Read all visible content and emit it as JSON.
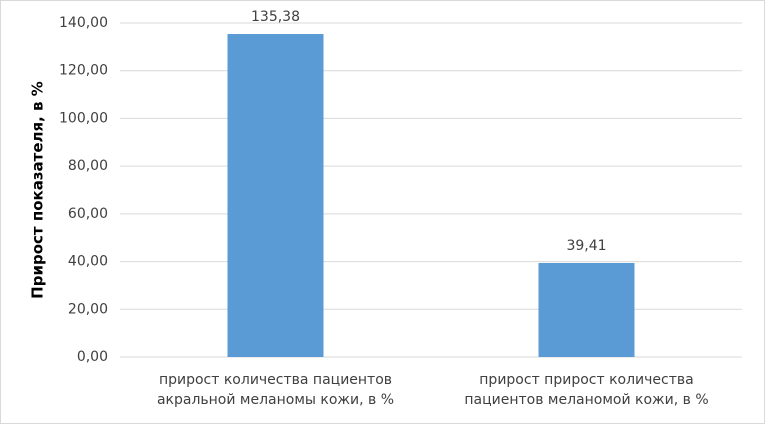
{
  "chart_data": {
    "type": "bar",
    "y_label": "Прирост показателя, в %",
    "categories": [
      [
        "прирост количества пациентов",
        "акральной меланомы кожи, в %"
      ],
      [
        "прирост прирост количества",
        "пациентов меланомой кожи, в %"
      ]
    ],
    "values": [
      135.38,
      39.41
    ],
    "value_labels": [
      "135,38",
      "39,41"
    ],
    "color": "#5b9bd5",
    "ylim": [
      0,
      140
    ],
    "yticks": [
      {
        "value": 0,
        "label": "0,00"
      },
      {
        "value": 20,
        "label": "20,00"
      },
      {
        "value": 40,
        "label": "40,00"
      },
      {
        "value": 60,
        "label": "60,00"
      },
      {
        "value": 80,
        "label": "80,00"
      },
      {
        "value": 100,
        "label": "100,00"
      },
      {
        "value": 120,
        "label": "120,00"
      },
      {
        "value": 140,
        "label": "140,00"
      }
    ],
    "grid": true
  }
}
